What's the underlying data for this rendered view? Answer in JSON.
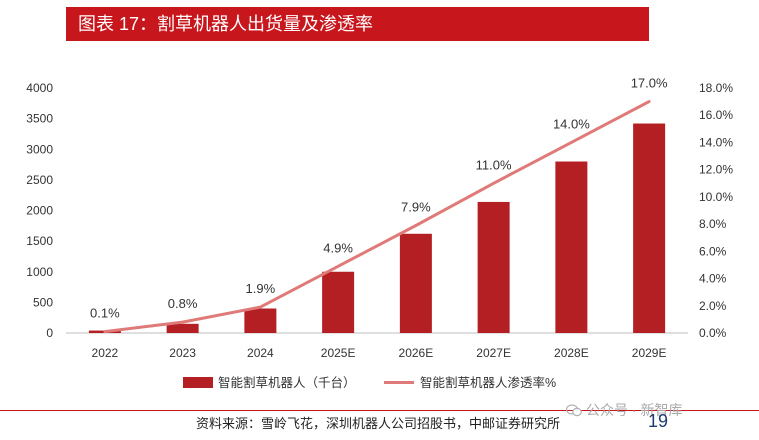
{
  "title": "图表 17：割草机器人出货量及渗透率",
  "chart_data": {
    "type": "bar+line",
    "categories": [
      "2022",
      "2023",
      "2024",
      "2025E",
      "2026E",
      "2027E",
      "2028E",
      "2029E"
    ],
    "series": [
      {
        "name": "智能割草机器人（千台）",
        "type": "bar",
        "axis": "left",
        "values": [
          40,
          150,
          400,
          1000,
          1620,
          2140,
          2800,
          3420
        ]
      },
      {
        "name": "智能割草机器人渗透率%",
        "type": "line",
        "axis": "right",
        "values": [
          0.1,
          0.8,
          1.9,
          4.9,
          7.9,
          11.0,
          14.0,
          17.0
        ],
        "labels": [
          "0.1%",
          "0.8%",
          "1.9%",
          "4.9%",
          "7.9%",
          "11.0%",
          "14.0%",
          "17.0%"
        ]
      }
    ],
    "y_left": {
      "range": [
        0,
        4000
      ],
      "ticks": [
        0,
        500,
        1000,
        1500,
        2000,
        2500,
        3000,
        3500,
        4000
      ],
      "tick_labels": [
        "0",
        "500",
        "1000",
        "1500",
        "2000",
        "2500",
        "3000",
        "3500",
        "4000"
      ]
    },
    "y_right": {
      "range": [
        0,
        18
      ],
      "ticks": [
        0,
        2,
        4,
        6,
        8,
        10,
        12,
        14,
        16,
        18
      ],
      "tick_labels": [
        "0.0%",
        "2.0%",
        "4.0%",
        "6.0%",
        "8.0%",
        "10.0%",
        "12.0%",
        "14.0%",
        "16.0%",
        "18.0%"
      ]
    },
    "legend_position": "bottom",
    "grid": false
  },
  "colors": {
    "bar": "#b41f24",
    "line": "#e07a79",
    "accent": "#c8161d"
  },
  "footer": {
    "source": "资料来源：雪岭飞花，深圳机器人公司招股书，中邮证券研究所",
    "watermark": "公众号 · 新智库",
    "page": "19"
  }
}
